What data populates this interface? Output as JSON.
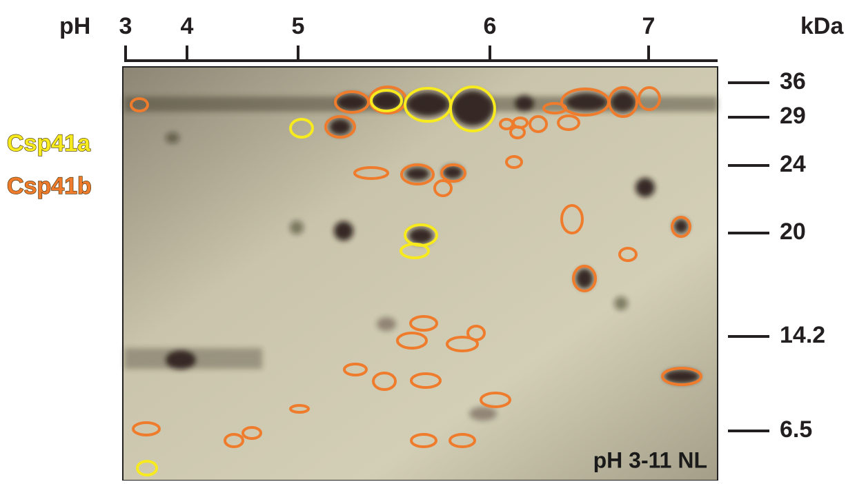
{
  "axis": {
    "label": "pH",
    "ticks": [
      "3",
      "4",
      "5",
      "6",
      "7"
    ]
  },
  "markers": {
    "label": "kDa",
    "values": [
      "36",
      "29",
      "24",
      "20",
      "14.2",
      "6.5"
    ]
  },
  "legend": {
    "items": [
      "Csp41a",
      "Csp41b"
    ]
  },
  "gel": {
    "caption": "pH 3-11 NL"
  }
}
